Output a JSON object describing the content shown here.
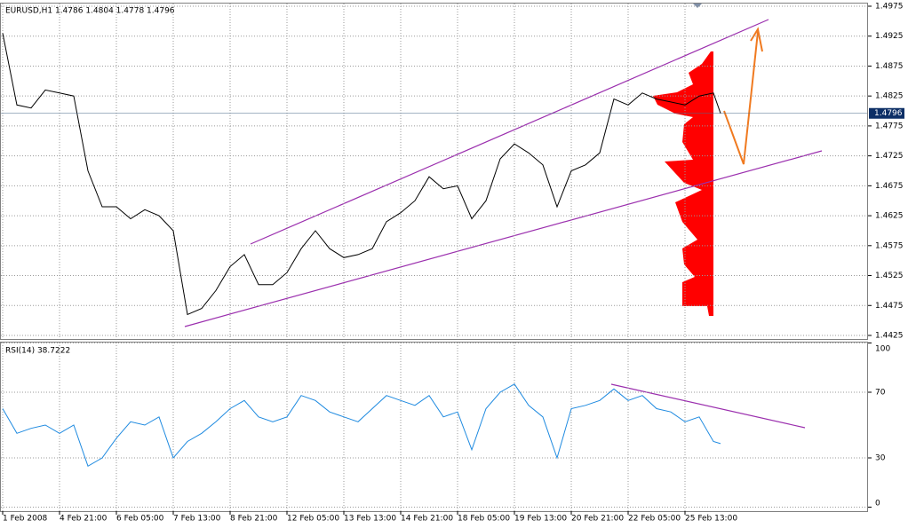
{
  "chart_data": [
    {
      "type": "line",
      "title": "EURUSD,H1  1.4786 1.4804 1.4778 1.4796",
      "color": "#000000",
      "xlim": [
        0,
        486
      ],
      "ylim": [
        1.4425,
        1.4975
      ],
      "yticks": [
        1.4425,
        1.4475,
        1.4525,
        1.4575,
        1.4625,
        1.4675,
        1.4725,
        1.4775,
        1.4825,
        1.4875,
        1.4925,
        1.4975
      ],
      "grid": true,
      "last_price": 1.4796,
      "x": [
        0,
        8,
        16,
        24,
        32,
        40,
        48,
        56,
        64,
        72,
        80,
        88,
        96,
        104,
        112,
        120,
        128,
        136,
        144,
        152,
        160,
        168,
        176,
        184,
        192,
        200,
        208,
        216,
        224,
        232,
        240,
        248,
        256,
        264,
        272,
        280,
        288,
        296,
        304,
        312,
        320,
        328,
        336,
        344,
        352,
        360,
        368,
        376,
        384,
        392,
        400,
        404
      ],
      "values": [
        1.493,
        1.481,
        1.4805,
        1.4835,
        1.483,
        1.4825,
        1.47,
        1.464,
        1.464,
        1.462,
        1.4635,
        1.4625,
        1.46,
        1.446,
        1.447,
        1.45,
        1.454,
        1.456,
        1.451,
        1.451,
        1.453,
        1.457,
        1.46,
        1.457,
        1.4555,
        1.456,
        1.457,
        1.4615,
        1.463,
        1.465,
        1.469,
        1.467,
        1.4675,
        1.462,
        1.465,
        1.472,
        1.4745,
        1.473,
        1.471,
        1.464,
        1.47,
        1.471,
        1.473,
        1.482,
        1.481,
        1.483,
        1.482,
        1.4815,
        1.481,
        1.4825,
        1.483,
        1.4796
      ]
    },
    {
      "type": "line",
      "title": "RSI(14) 38.7222",
      "color": "#1e8ae0",
      "xlim": [
        0,
        486
      ],
      "ylim": [
        0,
        100
      ],
      "yticks": [
        0,
        30,
        70,
        100
      ],
      "grid": true,
      "xticks": [
        {
          "value": 0,
          "label": "1 Feb 2008"
        },
        {
          "value": 32,
          "label": "4 Feb 21:00"
        },
        {
          "value": 64,
          "label": "6 Feb 05:00"
        },
        {
          "value": 96,
          "label": "7 Feb 13:00"
        },
        {
          "value": 128,
          "label": "8 Feb 21:00"
        },
        {
          "value": 160,
          "label": "12 Feb 05:00"
        },
        {
          "value": 192,
          "label": "13 Feb 13:00"
        },
        {
          "value": 224,
          "label": "14 Feb 21:00"
        },
        {
          "value": 256,
          "label": "18 Feb 05:00"
        },
        {
          "value": 288,
          "label": "19 Feb 13:00"
        },
        {
          "value": 320,
          "label": "20 Feb 21:00"
        },
        {
          "value": 352,
          "label": "22 Feb 05:00"
        },
        {
          "value": 384,
          "label": "25 Feb 13:00"
        }
      ],
      "x": [
        0,
        8,
        16,
        24,
        32,
        40,
        48,
        56,
        64,
        72,
        80,
        88,
        96,
        104,
        112,
        120,
        128,
        136,
        144,
        152,
        160,
        168,
        176,
        184,
        192,
        200,
        208,
        216,
        224,
        232,
        240,
        248,
        256,
        264,
        272,
        280,
        288,
        296,
        304,
        312,
        320,
        328,
        336,
        344,
        352,
        360,
        368,
        376,
        384,
        392,
        400,
        404
      ],
      "values": [
        60,
        45,
        48,
        50,
        45,
        50,
        25,
        30,
        42,
        52,
        50,
        55,
        30,
        40,
        45,
        52,
        60,
        65,
        55,
        52,
        55,
        68,
        65,
        58,
        55,
        52,
        60,
        68,
        65,
        62,
        68,
        55,
        58,
        35,
        60,
        70,
        75,
        62,
        55,
        30,
        60,
        62,
        65,
        72,
        65,
        68,
        60,
        58,
        52,
        55,
        40,
        38.7222
      ]
    }
  ]
}
